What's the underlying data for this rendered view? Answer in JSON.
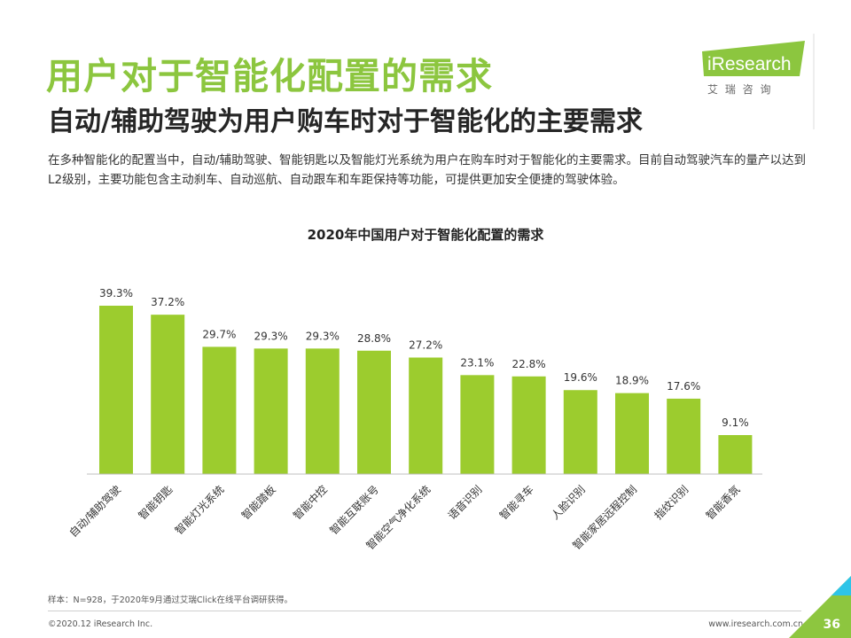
{
  "header": {
    "title": "用户对于智能化配置的需求",
    "subtitle": "自动/辅助驾驶为用户购车时对于智能化的主要需求",
    "description": "在多种智能化的配置当中，自动/辅助驾驶、智能钥匙以及智能灯光系统为用户在购车时对于智能化的主要需求。目前自动驾驶汽车的量产以达到L2级别，主要功能包含主动刹车、自动巡航、自动跟车和车距保持等功能，可提供更加安全便捷的驾驶体验。"
  },
  "logo": {
    "brand": "iResearch",
    "tagline": "艾 瑞 咨 询"
  },
  "chart_data": {
    "type": "bar",
    "title": "2020年中国用户对于智能化配置的需求",
    "categories": [
      "自动/辅助驾驶",
      "智能钥匙",
      "智能灯光系统",
      "智能踏板",
      "智能中控",
      "智能互联账号",
      "智能空气净化系统",
      "语音识别",
      "智能寻车",
      "人脸识别",
      "智能家居远程控制",
      "指纹识别",
      "智能香氛"
    ],
    "values": [
      39.3,
      37.2,
      29.7,
      29.3,
      29.3,
      28.8,
      27.2,
      23.1,
      22.8,
      19.6,
      18.9,
      17.6,
      9.1
    ],
    "labels": [
      "39.3%",
      "37.2%",
      "29.7%",
      "29.3%",
      "29.3%",
      "28.8%",
      "27.2%",
      "23.1%",
      "22.8%",
      "19.6%",
      "18.9%",
      "17.6%",
      "9.1%"
    ],
    "unit": "%",
    "ylim": [
      0,
      40
    ],
    "grid": false,
    "bar_color": "#9ccc2e"
  },
  "footer": {
    "note": "样本：N=928，于2020年9月通过艾瑞Click在线平台调研获得。",
    "copyright": "©2020.12 iResearch Inc.",
    "site": "www.iresearch.com.cn",
    "page": "36"
  },
  "colors": {
    "accent": "#8cc63f",
    "bar": "#9ccc2e",
    "corner": "#8dc63f",
    "corner_light": "#2ec4e8"
  }
}
